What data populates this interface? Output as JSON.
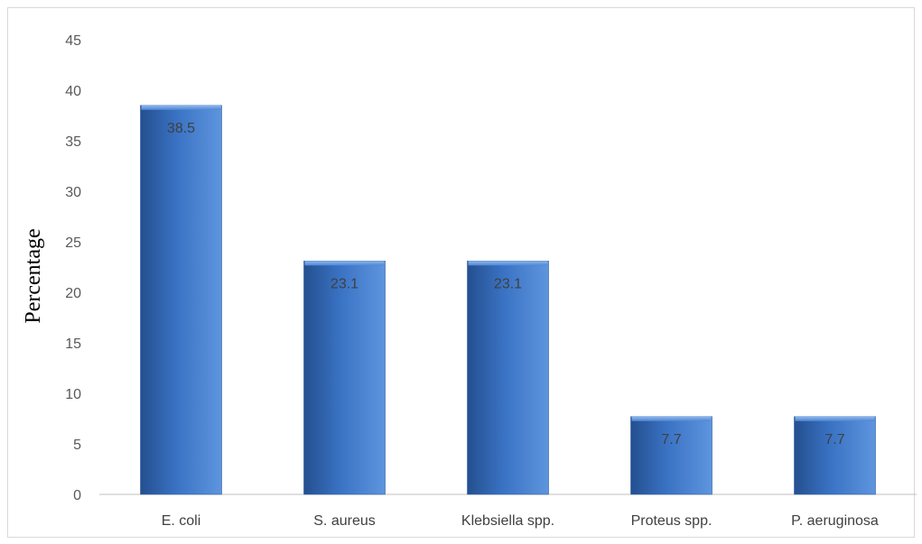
{
  "chart_data": {
    "type": "bar",
    "title": "",
    "xlabel": "",
    "ylabel": "Percentage",
    "ylim": [
      0,
      45
    ],
    "yticks": [
      0,
      5,
      10,
      15,
      20,
      25,
      30,
      35,
      40,
      45
    ],
    "grid": false,
    "legend": "none",
    "categories": [
      "E. coli",
      "S. aureus",
      "Klebsiella spp.",
      "Proteus spp.",
      "P. aeruginosa"
    ],
    "values": [
      38.5,
      23.1,
      23.1,
      7.7,
      7.7
    ],
    "data_labels": [
      "38.5",
      "23.1",
      "23.1",
      "7.7",
      "7.7"
    ],
    "colors": {
      "bar": "#3a73c4",
      "bar_dark": "#244f8f",
      "bar_light": "#5e95de"
    }
  }
}
